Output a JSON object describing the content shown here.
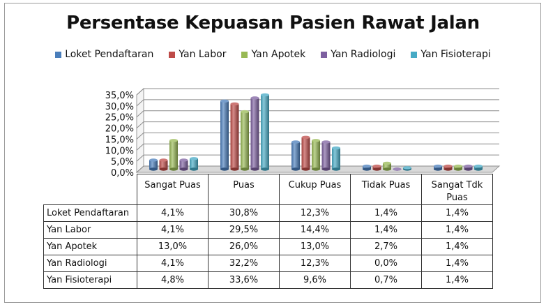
{
  "chart_data": {
    "type": "bar",
    "title": "Persentase Kepuasan Pasien Rawat Jalan",
    "categories": [
      "Sangat Puas",
      "Puas",
      "Cukup Puas",
      "Tidak Puas",
      "Sangat Tdk Puas"
    ],
    "series": [
      {
        "name": "Loket Pendaftaran",
        "color": "#4a7ebb",
        "values": [
          4.1,
          30.8,
          12.3,
          1.4,
          1.4
        ],
        "labels": [
          "4,1%",
          "30,8%",
          "12,3%",
          "1,4%",
          "1,4%"
        ]
      },
      {
        "name": "Yan Labor",
        "color": "#be4b48",
        "values": [
          4.1,
          29.5,
          14.4,
          1.4,
          1.4
        ],
        "labels": [
          "4,1%",
          "29,5%",
          "14,4%",
          "1,4%",
          "1,4%"
        ]
      },
      {
        "name": "Yan Apotek",
        "color": "#98b954",
        "values": [
          13.0,
          26.0,
          13.0,
          2.7,
          1.4
        ],
        "labels": [
          "13,0%",
          "26,0%",
          "13,0%",
          "2,7%",
          "1,4%"
        ]
      },
      {
        "name": "Yan Radiologi",
        "color": "#7d60a0",
        "values": [
          4.1,
          32.2,
          12.3,
          0.0,
          1.4
        ],
        "labels": [
          "4,1%",
          "32,2%",
          "12,3%",
          "0,0%",
          "1,4%"
        ]
      },
      {
        "name": "Yan Fisioterapi",
        "color": "#46aac5",
        "values": [
          4.8,
          33.6,
          9.6,
          0.7,
          1.4
        ],
        "labels": [
          "4,8%",
          "33,6%",
          "9,6%",
          "0,7%",
          "1,4%"
        ]
      }
    ],
    "yticks": [
      "0,0%",
      "5,0%",
      "10,0%",
      "15,0%",
      "20,0%",
      "25,0%",
      "30,0%",
      "35,0%"
    ],
    "ylim": [
      0,
      35
    ],
    "grid": true,
    "legend_position": "top",
    "has_data_table": true
  }
}
